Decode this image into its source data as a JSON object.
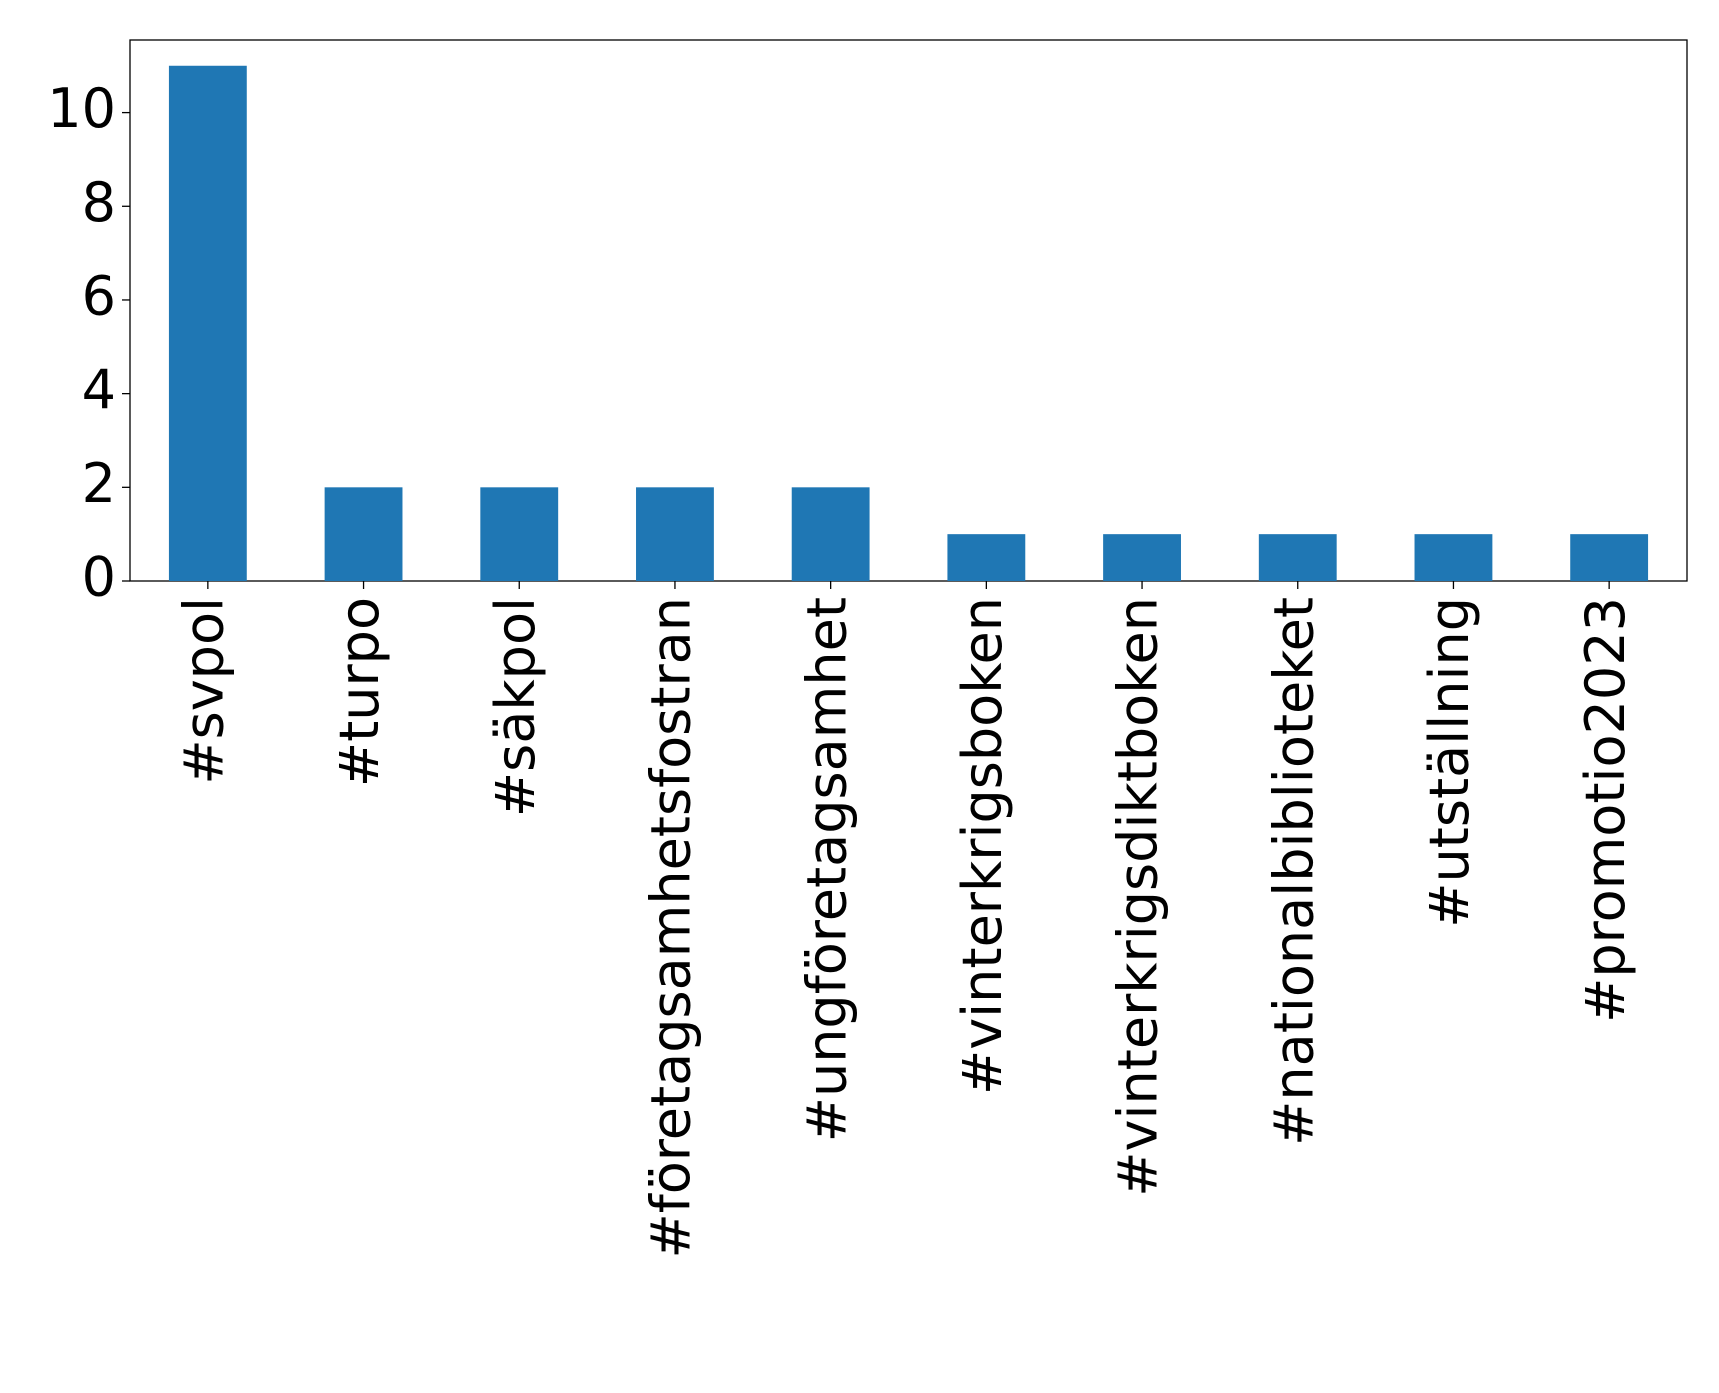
{
  "chart_data": {
    "type": "bar",
    "categories": [
      "#svpol",
      "#turpo",
      "#säkpol",
      "#företagsamhetsfostran",
      "#ungföretagsamhet",
      "#vinterkrigsboken",
      "#vinterkrigsdiktboken",
      "#nationalbiblioteket",
      "#utställning",
      "#promotio2023"
    ],
    "values": [
      11,
      2,
      2,
      2,
      2,
      1,
      1,
      1,
      1,
      1
    ],
    "color": "#1f77b4",
    "ylim": [
      0,
      11.55
    ],
    "yticks": [
      0,
      2,
      4,
      6,
      8,
      10
    ],
    "grid": false
  }
}
